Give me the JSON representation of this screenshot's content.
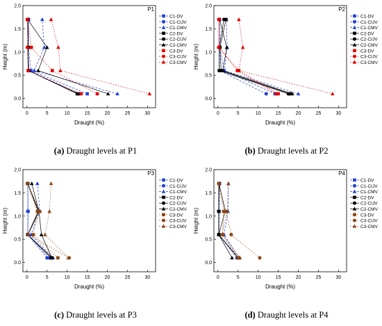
{
  "figure": {
    "captions": [
      {
        "tag": "(a)",
        "text": "Draught levels at P1"
      },
      {
        "tag": "(b)",
        "text": "Draught levels at P2"
      },
      {
        "tag": "(c)",
        "text": "Draught levels at P3"
      },
      {
        "tag": "(d)",
        "text": "Draught levels at P4"
      }
    ]
  },
  "colors": {
    "C1": "#1f3fd6",
    "C2": "#000000",
    "C3": "#e00000",
    "C3_lower": "#8b4513",
    "axis": "#000000"
  },
  "chart_data": [
    {
      "type": "line",
      "title": "P1",
      "xlabel": "Draught (%)",
      "ylabel": "Height (m)",
      "xlim": [
        -1,
        32
      ],
      "ylim": [
        -0.2,
        2.0
      ],
      "xticks": [
        "0",
        "5",
        "10",
        "15",
        "20",
        "25",
        "30"
      ],
      "yticks": [
        "0.0",
        "0.5",
        "1.0",
        "1.5",
        "2.0"
      ],
      "grid": false,
      "legend_position": "top-right",
      "y": [
        0.1,
        0.6,
        1.1,
        1.7
      ],
      "series": [
        {
          "name": "C1-DV",
          "x": [
            15.0,
            1.0,
            0.4,
            0.4
          ]
        },
        {
          "name": "C1-CIJV",
          "x": [
            13.0,
            0.5,
            0.3,
            0.4
          ]
        },
        {
          "name": "C1-CMV",
          "x": [
            22.5,
            1.8,
            4.3,
            3.8
          ]
        },
        {
          "name": "C2-DV",
          "x": [
            12.5,
            0.4,
            0.3,
            0.2
          ]
        },
        {
          "name": "C2-CIJV",
          "x": [
            12.8,
            0.3,
            0.3,
            0.2
          ]
        },
        {
          "name": "C2-CMV",
          "x": [
            20.2,
            2.8,
            5.0,
            0.2
          ]
        },
        {
          "name": "C3-DV",
          "x": [
            17.5,
            6.3,
            1.1,
            0.1
          ]
        },
        {
          "name": "C3-CIJV",
          "x": [
            13.5,
            0.3,
            0.1,
            0.1
          ]
        },
        {
          "name": "C3-CMV",
          "x": [
            30.5,
            8.3,
            7.8,
            6.0
          ]
        }
      ]
    },
    {
      "type": "line",
      "title": "P2",
      "xlabel": "Draught (%)",
      "ylabel": "Height (m)",
      "xlim": [
        -1,
        32
      ],
      "ylim": [
        -0.2,
        2.0
      ],
      "xticks": [
        "0",
        "5",
        "10",
        "15",
        "20",
        "25",
        "30"
      ],
      "yticks": [
        "0.0",
        "0.5",
        "1.0",
        "1.5",
        "2.0"
      ],
      "grid": false,
      "legend_position": "top-right",
      "y": [
        0.1,
        0.6,
        1.1,
        1.7
      ],
      "series": [
        {
          "name": "C1-DV",
          "x": [
            14.2,
            1.5,
            0.5,
            0.4
          ]
        },
        {
          "name": "C1-CIJV",
          "x": [
            12.0,
            0.4,
            0.4,
            0.4
          ]
        },
        {
          "name": "C1-CMV",
          "x": [
            20.0,
            1.6,
            2.3,
            2.1
          ]
        },
        {
          "name": "C2-DV",
          "x": [
            18.0,
            0.8,
            0.5,
            2.0
          ]
        },
        {
          "name": "C2-CIJV",
          "x": [
            17.5,
            0.3,
            0.3,
            1.5
          ]
        },
        {
          "name": "C2-CMV",
          "x": [
            18.5,
            1.2,
            2.2,
            0.4
          ]
        },
        {
          "name": "C3-DV",
          "x": [
            15.0,
            5.2,
            0.2,
            0.3
          ]
        },
        {
          "name": "C3-CIJV",
          "x": [
            14.5,
            4.8,
            0.2,
            0.2
          ]
        },
        {
          "name": "C3-CMV",
          "x": [
            28.5,
            5.2,
            6.2,
            5.2
          ]
        }
      ]
    },
    {
      "type": "line",
      "title": "P3",
      "xlabel": "Draught (%)",
      "ylabel": "Height (m)",
      "xlim": [
        -1,
        32
      ],
      "ylim": [
        -0.2,
        2.0
      ],
      "xticks": [
        "0",
        "5",
        "10",
        "15",
        "20",
        "25",
        "30"
      ],
      "yticks": [
        "0.0",
        "0.5",
        "1.0",
        "1.5",
        "2.0"
      ],
      "grid": false,
      "legend_position": "top-right",
      "y": [
        0.1,
        0.6,
        1.1,
        1.7
      ],
      "series": [
        {
          "name": "C1-DV",
          "x": [
            5.5,
            0.2,
            0.3,
            0.2
          ]
        },
        {
          "name": "C1-CIJV",
          "x": [
            5.0,
            0.2,
            0.2,
            0.2
          ]
        },
        {
          "name": "C1-CMV",
          "x": [
            6.5,
            1.0,
            3.2,
            2.6
          ]
        },
        {
          "name": "C2-DV",
          "x": [
            6.0,
            0.2,
            2.8,
            0.2
          ]
        },
        {
          "name": "C2-CIJV",
          "x": [
            6.3,
            0.2,
            3.0,
            0.2
          ]
        },
        {
          "name": "C2-CMV",
          "x": [
            6.2,
            3.6,
            3.0,
            1.2
          ]
        },
        {
          "name": "C3-DV",
          "x": [
            7.7,
            1.6,
            2.6,
            0.1
          ]
        },
        {
          "name": "C3-CIJV",
          "x": [
            10.5,
            0.3,
            3.2,
            0.1
          ]
        },
        {
          "name": "C3-CMV",
          "x": [
            10.3,
            4.5,
            5.6,
            6.0
          ]
        }
      ]
    },
    {
      "type": "line",
      "title": "P4",
      "xlabel": "Draught (%)",
      "ylabel": "Height (m)",
      "xlim": [
        -1,
        32
      ],
      "ylim": [
        -0.2,
        2.0
      ],
      "xticks": [
        "0",
        "5",
        "10",
        "15",
        "20",
        "25",
        "30"
      ],
      "yticks": [
        "0.0",
        "0.5",
        "1.0",
        "1.5",
        "2.0"
      ],
      "grid": false,
      "legend_position": "top-right",
      "y": [
        0.1,
        0.6,
        1.1,
        1.7
      ],
      "series": [
        {
          "name": "C1-DV",
          "x": [
            5.0,
            0.3,
            0.3,
            0.4
          ]
        },
        {
          "name": "C1-CIJV",
          "x": [
            4.7,
            0.2,
            0.2,
            0.2
          ]
        },
        {
          "name": "C1-CMV",
          "x": [
            5.3,
            1.5,
            2.5,
            2.6
          ]
        },
        {
          "name": "C2-DV",
          "x": [
            5.1,
            0.2,
            0.2,
            0.3
          ]
        },
        {
          "name": "C2-CIJV",
          "x": [
            5.0,
            0.2,
            0.2,
            0.2
          ]
        },
        {
          "name": "C2-CMV",
          "x": [
            3.5,
            0.2,
            1.8,
            0.3
          ]
        },
        {
          "name": "C3-DV",
          "x": [
            5.0,
            1.2,
            1.4,
            0.2
          ]
        },
        {
          "name": "C3-CIJV",
          "x": [
            10.4,
            3.3,
            2.0,
            0.2
          ]
        },
        {
          "name": "C3-CMV",
          "x": [
            5.5,
            1.0,
            2.3,
            2.6
          ]
        }
      ]
    }
  ]
}
